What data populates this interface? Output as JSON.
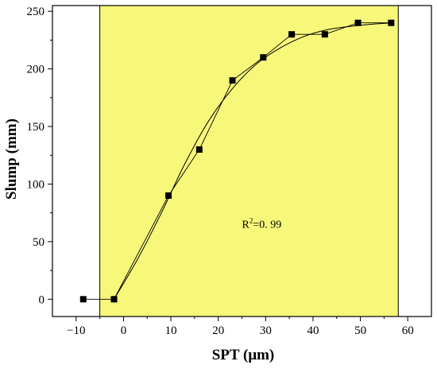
{
  "chart_data": {
    "type": "scatter",
    "title": "",
    "xlabel": "SPT (μm)",
    "ylabel": "Slump (mm)",
    "xlim": [
      -15,
      65
    ],
    "ylim": [
      -15,
      255
    ],
    "x_ticks": [
      -10,
      0,
      10,
      20,
      30,
      40,
      50,
      60
    ],
    "y_ticks": [
      0,
      50,
      100,
      150,
      200,
      250
    ],
    "x_tick_labels": [
      "−10",
      "0",
      "10",
      "20",
      "30",
      "40",
      "50",
      "60"
    ],
    "y_tick_labels": [
      "0",
      "50",
      "100",
      "150",
      "200",
      "250"
    ],
    "grid": false,
    "legend": "none",
    "highlight_region": {
      "x_start": -5,
      "x_end": 58,
      "color": "#f7f77a"
    },
    "annotation": {
      "text_base": "R",
      "text_sup": "2",
      "text_rest": "=0. 99",
      "x": 25,
      "y": 62
    },
    "series": [
      {
        "points": [
          {
            "x": -8.5,
            "y": 0
          },
          {
            "x": -2,
            "y": 0
          },
          {
            "x": 9.5,
            "y": 90
          },
          {
            "x": 16,
            "y": 130
          },
          {
            "x": 23,
            "y": 190
          },
          {
            "x": 29.5,
            "y": 210
          },
          {
            "x": 35.5,
            "y": 230
          },
          {
            "x": 42.5,
            "y": 230
          },
          {
            "x": 49.5,
            "y": 240
          },
          {
            "x": 56.5,
            "y": 240
          }
        ],
        "color": "#000000",
        "marker": "square"
      }
    ],
    "fit_curve": {
      "color": "#000000",
      "points": [
        {
          "x": -2,
          "y": 0
        },
        {
          "x": 3,
          "y": 35
        },
        {
          "x": 8,
          "y": 75
        },
        {
          "x": 13,
          "y": 118
        },
        {
          "x": 18,
          "y": 155
        },
        {
          "x": 23,
          "y": 183
        },
        {
          "x": 28,
          "y": 204
        },
        {
          "x": 33,
          "y": 218
        },
        {
          "x": 38,
          "y": 228
        },
        {
          "x": 43,
          "y": 234
        },
        {
          "x": 48,
          "y": 237
        },
        {
          "x": 53,
          "y": 239
        },
        {
          "x": 56.5,
          "y": 240
        }
      ]
    }
  }
}
